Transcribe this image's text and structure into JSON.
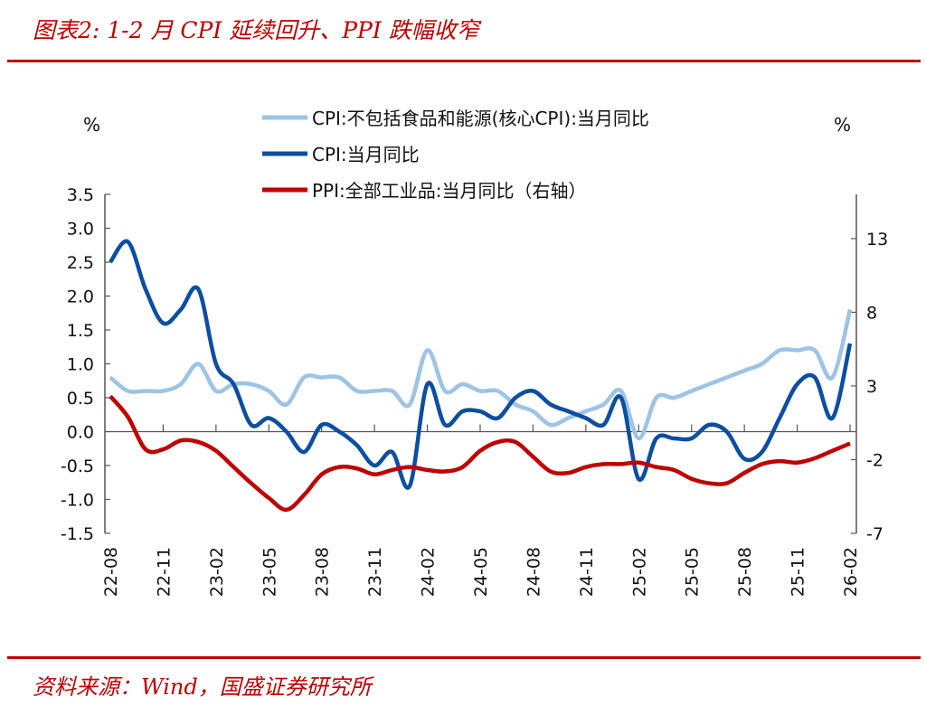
{
  "title": "图表2:  1-2 月 CPI 延续回升、PPI 跌幅收窄",
  "source": "资料来源：Wind，国盛证券研究所",
  "chart_data": {
    "type": "line",
    "title": "图表2:  1-2 月 CPI 延续回升、PPI 跌幅收窄",
    "left_unit": "%",
    "right_unit": "%",
    "ylim_left": [
      -1.5,
      3.5
    ],
    "yticks_left": [
      "3.5",
      "3.0",
      "2.5",
      "2.0",
      "1.5",
      "1.0",
      "0.5",
      "0.0",
      "-0.5",
      "-1.0",
      "-1.5"
    ],
    "ylim_right": [
      -7,
      16
    ],
    "yticks_right": [
      "13",
      "8",
      "3",
      "-2",
      "-7"
    ],
    "x": [
      "22-08",
      "22-09",
      "22-10",
      "22-11",
      "22-12",
      "23-01",
      "23-02",
      "23-03",
      "23-04",
      "23-05",
      "23-06",
      "23-07",
      "23-08",
      "23-09",
      "23-10",
      "23-11",
      "23-12",
      "24-01",
      "24-02",
      "24-03",
      "24-04",
      "24-05",
      "24-06",
      "24-07",
      "24-08",
      "24-09",
      "24-10",
      "24-11",
      "24-12",
      "25-01",
      "25-02",
      "25-03",
      "25-04",
      "25-05",
      "25-06",
      "25-07",
      "25-08",
      "25-09",
      "25-10",
      "25-11",
      "25-12",
      "26-01",
      "26-02"
    ],
    "xtick_labels": [
      "22-08",
      "22-11",
      "23-02",
      "23-05",
      "23-08",
      "23-11",
      "24-02",
      "24-05",
      "24-08",
      "24-11",
      "25-02",
      "25-05",
      "25-08",
      "25-11",
      "26-02"
    ],
    "legend_position": "top",
    "series": [
      {
        "name": "CPI:不包括食品和能源(核心CPI):当月同比",
        "axis": "left",
        "color": "#9dc3e6",
        "values": [
          0.8,
          0.6,
          0.6,
          0.6,
          0.7,
          1.0,
          0.6,
          0.7,
          0.7,
          0.6,
          0.4,
          0.8,
          0.8,
          0.8,
          0.6,
          0.6,
          0.6,
          0.4,
          1.2,
          0.6,
          0.7,
          0.6,
          0.6,
          0.4,
          0.3,
          0.1,
          0.2,
          0.3,
          0.4,
          0.6,
          -0.1,
          0.5,
          0.5,
          0.6,
          0.7,
          0.8,
          0.9,
          1.0,
          1.2,
          1.2,
          1.2,
          0.8,
          1.8
        ]
      },
      {
        "name": "CPI:当月同比",
        "axis": "left",
        "color": "#0b4ea2",
        "values": [
          2.5,
          2.8,
          2.1,
          1.6,
          1.8,
          2.1,
          1.0,
          0.7,
          0.1,
          0.2,
          0.0,
          -0.3,
          0.1,
          0.0,
          -0.2,
          -0.5,
          -0.3,
          -0.8,
          0.7,
          0.1,
          0.3,
          0.3,
          0.2,
          0.5,
          0.6,
          0.4,
          0.3,
          0.2,
          0.1,
          0.5,
          -0.7,
          -0.1,
          -0.1,
          -0.1,
          0.1,
          0.0,
          -0.4,
          -0.3,
          0.2,
          0.7,
          0.8,
          0.2,
          1.3
        ]
      },
      {
        "name": "PPI:全部工业品:当月同比（右轴）",
        "axis": "right",
        "color": "#c00000",
        "values": [
          2.3,
          0.9,
          -1.3,
          -1.3,
          -0.7,
          -0.8,
          -1.4,
          -2.5,
          -3.6,
          -4.6,
          -5.4,
          -4.4,
          -3.0,
          -2.5,
          -2.6,
          -3.0,
          -2.7,
          -2.5,
          -2.7,
          -2.8,
          -2.5,
          -1.4,
          -0.8,
          -0.8,
          -1.8,
          -2.8,
          -2.9,
          -2.5,
          -2.3,
          -2.3,
          -2.2,
          -2.5,
          -2.7,
          -3.3,
          -3.6,
          -3.6,
          -2.9,
          -2.3,
          -2.1,
          -2.2,
          -1.9,
          -1.4,
          -0.9
        ]
      }
    ]
  }
}
